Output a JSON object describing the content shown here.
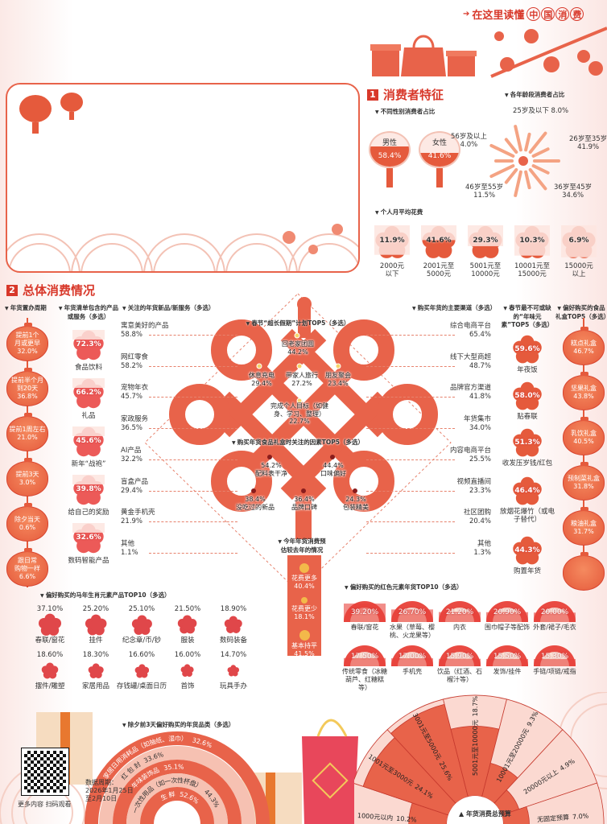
{
  "colors": {
    "primary": "#e55a3c",
    "dark_red": "#d8382a",
    "light_pink": "#f9d3c9",
    "peach": "#f6b49a",
    "gold": "#f3b94a"
  },
  "header": {
    "title_prefix": "在这里读懂",
    "title_highlight": [
      "中",
      "国",
      "消",
      "费"
    ],
    "arrow_icon": "arrow-right-icon"
  },
  "s1": {
    "num": "1",
    "title": "消费者特征",
    "gender": {
      "title": "不同性别消费者占比",
      "items": [
        {
          "label": "男性",
          "value": "58.4%",
          "pct": 58.4
        },
        {
          "label": "女性",
          "value": "41.6%",
          "pct": 41.6
        }
      ]
    },
    "age": {
      "title": "各年龄段消费者占比",
      "items": [
        {
          "label": "25岁及以下",
          "value": "8.0%"
        },
        {
          "label": "26岁至35岁",
          "value": "41.9%"
        },
        {
          "label": "36岁至45岁",
          "value": "34.6%"
        },
        {
          "label": "46岁至55岁",
          "value": "11.5%"
        },
        {
          "label": "56岁及以上",
          "value": "4.0%"
        }
      ]
    },
    "spend": {
      "title": "个人月平均花费",
      "items": [
        {
          "value": "11.9%",
          "pct": 11.9,
          "l1": "2000元",
          "l2": "以下"
        },
        {
          "value": "41.6%",
          "pct": 41.6,
          "l1": "2001元至",
          "l2": "5000元"
        },
        {
          "value": "29.3%",
          "pct": 29.3,
          "l1": "5001元至",
          "l2": "10000元"
        },
        {
          "value": "10.3%",
          "pct": 10.3,
          "l1": "10001元至",
          "l2": "15000元"
        },
        {
          "value": "6.9%",
          "pct": 6.9,
          "l1": "15000元",
          "l2": "以上"
        }
      ]
    }
  },
  "s2": {
    "num": "2",
    "title": "总体消费情况",
    "cycle": {
      "title": "年货置办周期",
      "items": [
        {
          "l1": "提前1个",
          "l2": "月或更早",
          "value": "32.0%"
        },
        {
          "l1": "提前半个月",
          "l2": "到20天",
          "value": "36.8%"
        },
        {
          "l1": "提前1周左右",
          "l2": "",
          "value": "21.0%"
        },
        {
          "l1": "提前3天",
          "l2": "",
          "value": "3.0%"
        },
        {
          "l1": "除夕当天",
          "l2": "",
          "value": "0.6%"
        },
        {
          "l1": "跟日常",
          "l2": "购物一样",
          "value": "6.6%"
        }
      ]
    },
    "list": {
      "title": "年货清单包含的产品或服务（多选）",
      "items": [
        {
          "label": "食品饮料",
          "value": "72.3%"
        },
        {
          "label": "礼品",
          "value": "66.2%"
        },
        {
          "label": "新年“战袍”",
          "value": "45.6%"
        },
        {
          "label": "给自己的奖励",
          "value": "39.8%"
        },
        {
          "label": "数码智能产品",
          "value": "32.6%"
        }
      ]
    },
    "newprod": {
      "title": "关注的年货新品/新服务（多选）",
      "items": [
        {
          "label": "寓意美好的产品",
          "value": "58.8%"
        },
        {
          "label": "网红零食",
          "value": "58.2%"
        },
        {
          "label": "宠物年衣",
          "value": "45.7%"
        },
        {
          "label": "家政服务",
          "value": "36.5%"
        },
        {
          "label": "AI产品",
          "value": "32.2%"
        },
        {
          "label": "盲盒产品",
          "value": "29.4%"
        },
        {
          "label": "黄金手机壳",
          "value": "21.9%"
        },
        {
          "label": "其他",
          "value": "1.1%"
        }
      ]
    },
    "channel": {
      "title": "购买年货的主要渠道（多选）",
      "items": [
        {
          "label": "综合电商平台",
          "value": "65.4%"
        },
        {
          "label": "线下大型商超",
          "value": "48.7%"
        },
        {
          "label": "品牌官方渠道",
          "value": "41.8%"
        },
        {
          "label": "年货集市",
          "value": "34.0%"
        },
        {
          "label": "内容电商平台",
          "value": "25.5%"
        },
        {
          "label": "视频直播间",
          "value": "23.3%"
        },
        {
          "label": "社区团购",
          "value": "20.4%"
        },
        {
          "label": "其他",
          "value": "1.3%"
        }
      ]
    },
    "holiday": {
      "title": "春节“超长假期”计划TOP5（多选）",
      "items": [
        {
          "label": "回老家团圆",
          "value": "44.2%"
        },
        {
          "label": "休息充电",
          "value": "29.4%"
        },
        {
          "label": "带家人旅行",
          "value": "27.2%"
        },
        {
          "label": "朋友聚会",
          "value": "23.4%"
        },
        {
          "label": "完成个人目标（如健身、学习、整理）",
          "value": "22.7%"
        }
      ]
    },
    "factors": {
      "title": "购买年货食品礼盒时关注的因素TOP5（多选）",
      "items": [
        {
          "label": "配料表干净",
          "value": "54.2%"
        },
        {
          "label": "口味偏好",
          "value": "44.4%"
        },
        {
          "label": "没吃过的新品",
          "value": "38.4%"
        },
        {
          "label": "品牌口碑",
          "value": "36.4%"
        },
        {
          "label": "包装精美",
          "value": "24.3%"
        }
      ]
    },
    "estimate": {
      "title": "今年年货消费预估较去年的情况",
      "items": [
        {
          "label": "花费更多",
          "value": "40.4%"
        },
        {
          "label": "花费更少",
          "value": "18.1%"
        },
        {
          "label": "基本持平",
          "value": "41.5%"
        }
      ]
    },
    "flavor": {
      "title": "春节最不可或缺的“年味元素”TOP5（多选）",
      "items": [
        {
          "label": "年夜饭",
          "value": "59.6%"
        },
        {
          "label": "贴春联",
          "value": "58.0%"
        },
        {
          "label": "收发压岁钱/红包",
          "value": "51.3%"
        },
        {
          "label": "放烟花爆竹（或电子替代）",
          "value": "46.4%"
        },
        {
          "label": "购置年货",
          "value": "44.3%"
        }
      ]
    },
    "giftbox": {
      "title": "偏好购买的食品礼盒TOP5（多选）",
      "items": [
        {
          "label": "糕点礼盒",
          "value": "46.7%"
        },
        {
          "label": "坚果礼盒",
          "value": "43.8%"
        },
        {
          "label": "乳饮礼盒",
          "value": "40.5%"
        },
        {
          "label": "预制菜礼盒",
          "value": "31.8%"
        },
        {
          "label": "粮油礼盒",
          "value": "31.7%"
        }
      ]
    },
    "zodiac": {
      "title": "偏好购买的马年生肖元素产品TOP10（多选）",
      "items": [
        {
          "label": "春联/窗花",
          "value": "37.10%"
        },
        {
          "label": "挂件",
          "value": "25.20%"
        },
        {
          "label": "纪念章/币/钞",
          "value": "25.10%"
        },
        {
          "label": "服装",
          "value": "21.50%"
        },
        {
          "label": "数码装备",
          "value": "18.90%"
        },
        {
          "label": "摆件/雕塑",
          "value": "18.60%"
        },
        {
          "label": "家居用品",
          "value": "18.30%"
        },
        {
          "label": "存钱罐/桌面日历",
          "value": "16.60%"
        },
        {
          "label": "首饰",
          "value": "16.00%"
        },
        {
          "label": "玩具手办",
          "value": "14.70%"
        }
      ]
    },
    "red": {
      "title": "偏好购买的红色元素年货TOP10（多选）",
      "items": [
        {
          "label": "春联/窗花",
          "value": "39.20%"
        },
        {
          "label": "水果（草莓、樱桃、火龙果等）",
          "value": "26.70%"
        },
        {
          "label": "内衣",
          "value": "21.20%"
        },
        {
          "label": "围巾帽子等配饰",
          "value": "20.90%"
        },
        {
          "label": "外套/裙子/毛衣",
          "value": "20.00%"
        },
        {
          "label": "传统零食（冰糖葫芦、红糖糕等）",
          "value": "17.50%"
        },
        {
          "label": "手机壳",
          "value": "17.00%"
        },
        {
          "label": "饮品（红酒、石榴汁等）",
          "value": "15.90%"
        },
        {
          "label": "发饰/挂件",
          "value": "15.50%"
        },
        {
          "label": "手链/项链/戒指",
          "value": "15.30%"
        }
      ]
    },
    "lastdays": {
      "title": "除夕前3天偏好购买的年货品类（多选）",
      "items": [
        {
          "label": "生 鲜",
          "value": "52.6%"
        },
        {
          "label": "一次性用品（如一次性杯盘）",
          "value": "44.3%"
        },
        {
          "label": "年味装饰品",
          "value": "35.1%"
        },
        {
          "label": "红 包 封",
          "value": "33.6%"
        },
        {
          "label": "家居日用消耗品（如抽纸、湿巾）",
          "value": "32.6%"
        }
      ]
    },
    "budget": {
      "title": "年货消费总预算",
      "items": [
        {
          "label": "1000元以内",
          "value": "10.2%",
          "pct": 10.2
        },
        {
          "label": "1001元至3000元",
          "value": "24.1%",
          "pct": 24.1
        },
        {
          "label": "3001元至5000元",
          "value": "25.6%",
          "pct": 25.6
        },
        {
          "label": "5001元至10000元",
          "value": "18.7%",
          "pct": 18.7
        },
        {
          "label": "10001元至20000元",
          "value": "9.3%",
          "pct": 9.3
        },
        {
          "label": "20000元以上",
          "value": "4.9%",
          "pct": 4.9
        },
        {
          "label": "无固定预算",
          "value": "7.0%",
          "pct": 7.0
        }
      ]
    }
  },
  "footer": {
    "qr_caption": "更多内容 扫码观看",
    "period_label": "数据周期：",
    "period_start": "2026年1月25日",
    "period_end": "至2月10日"
  }
}
